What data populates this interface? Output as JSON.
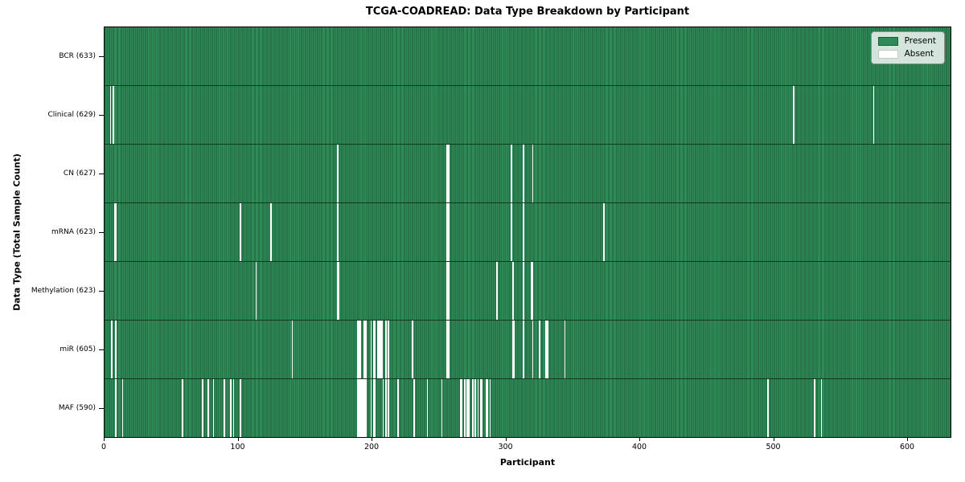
{
  "title": "TCGA-COADREAD: Data Type Breakdown by Participant",
  "colors": {
    "present": "#2e8b57",
    "present_edge": "#1d5c38",
    "absent": "#ffffff",
    "row_divider": "#12391f",
    "axes_edge": "#000000",
    "legend_border": "#8f8f8f"
  },
  "chart_data": {
    "type": "heatmap",
    "title": "TCGA-COADREAD: Data Type Breakdown by Participant",
    "xlabel": "Participant",
    "ylabel": "Data Type (Total Sample Count)",
    "xlim": [
      0,
      633
    ],
    "n_participants": 633,
    "x_ticks": [
      0,
      100,
      200,
      300,
      400,
      500,
      600
    ],
    "grid": false,
    "legend_position": "upper right",
    "legend": [
      {
        "label": "Present",
        "color": "#2e8b57"
      },
      {
        "label": "Absent",
        "color": "#ffffff"
      }
    ],
    "rows": [
      {
        "label": "BCR (633)",
        "data_type": "BCR",
        "present_count": 633,
        "absent_participants": []
      },
      {
        "label": "Clinical (629)",
        "data_type": "Clinical",
        "present_count": 629,
        "absent_participants": [
          4,
          6,
          515,
          575
        ]
      },
      {
        "label": "CN (627)",
        "data_type": "CN",
        "present_count": 627,
        "absent_participants": [
          174,
          256,
          257,
          304,
          313,
          320
        ]
      },
      {
        "label": "mRNA (623)",
        "data_type": "mRNA",
        "present_count": 623,
        "absent_participants": [
          7,
          8,
          101,
          124,
          174,
          256,
          257,
          304,
          313,
          373
        ]
      },
      {
        "label": "Methylation (623)",
        "data_type": "Methylation",
        "present_count": 623,
        "absent_participants": [
          113,
          174,
          175,
          256,
          257,
          293,
          305,
          313,
          319,
          320
        ]
      },
      {
        "label": "miR (605)",
        "data_type": "miR",
        "present_count": 605,
        "absent_participants": [
          5,
          8,
          140,
          189,
          190,
          191,
          194,
          195,
          199,
          201,
          202,
          204,
          205,
          206,
          207,
          210,
          212,
          230,
          256,
          257,
          305,
          306,
          313,
          320,
          325,
          330,
          331,
          344
        ]
      },
      {
        "label": "MAF (590)",
        "data_type": "MAF",
        "present_count": 590,
        "absent_participants": [
          8,
          13,
          58,
          73,
          77,
          81,
          89,
          94,
          96,
          101,
          189,
          190,
          191,
          192,
          193,
          194,
          195,
          199,
          201,
          202,
          208,
          210,
          212,
          219,
          231,
          241,
          252,
          266,
          267,
          269,
          271,
          272,
          275,
          277,
          279,
          281,
          282,
          285,
          286,
          288,
          496,
          531,
          536
        ]
      }
    ]
  }
}
